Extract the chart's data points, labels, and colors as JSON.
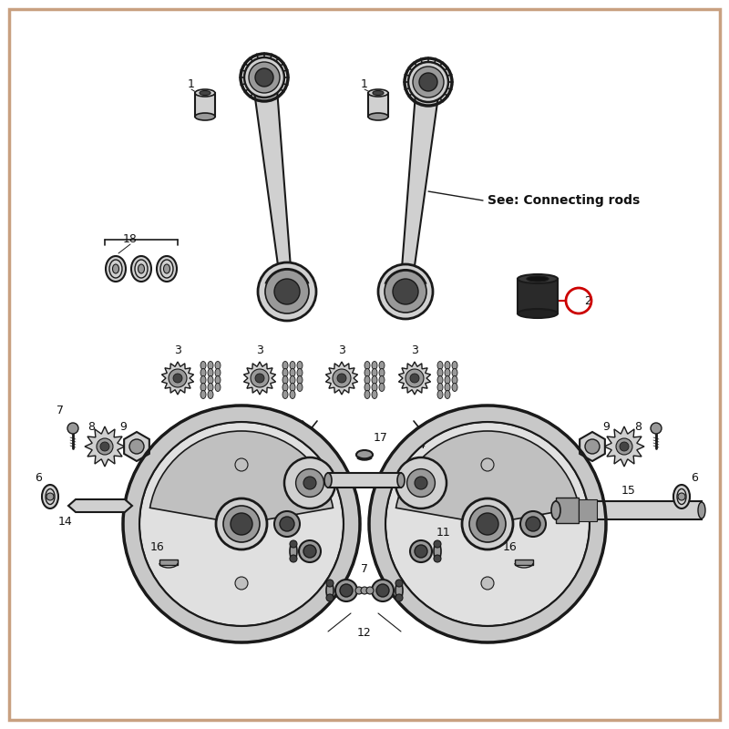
{
  "bg_color": "#ffffff",
  "border_color": "#c8a080",
  "see_text": "See: Connecting rods",
  "fig_width": 8.0,
  "fig_height": 8.0,
  "dpi": 100,
  "line_color": "#1a1a1a",
  "dark_color": "#111111",
  "mid_color": "#555555",
  "light_gray": "#d0d0d0",
  "med_gray": "#999999",
  "dark_gray": "#444444",
  "circle_highlight_color": "#cc0000",
  "label_fontsize": 9,
  "see_fontsize": 10
}
